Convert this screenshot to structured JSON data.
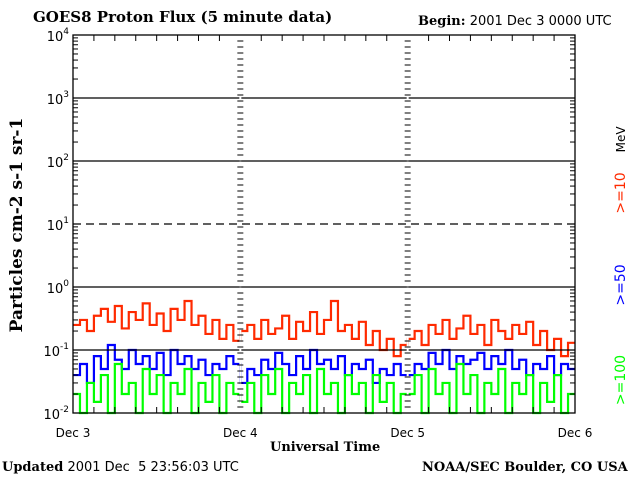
{
  "header": {
    "title": "GOES8 Proton Flux (5 minute data)",
    "begin_label": "Begin:",
    "begin_value": "2001 Dec 3 0000 UTC"
  },
  "footer": {
    "updated_label": "Updated",
    "updated_value": "2001 Dec  5 23:56:03 UTC",
    "credit": "NOAA/SEC Boulder, CO USA"
  },
  "chart_data": {
    "type": "line",
    "title": "GOES8 Proton Flux (5 minute data)",
    "xlabel": "Universal Time",
    "ylabel": "Particles cm-2 s-1 sr-1",
    "yscale": "log",
    "ylim": [
      0.01,
      10000
    ],
    "yticks": [
      {
        "base": "10",
        "exp": "4"
      },
      {
        "base": "10",
        "exp": "3"
      },
      {
        "base": "10",
        "exp": "2"
      },
      {
        "base": "10",
        "exp": "1"
      },
      {
        "base": "10",
        "exp": "0"
      },
      {
        "base": "10",
        "exp": "-1"
      },
      {
        "base": "10",
        "exp": "-2"
      }
    ],
    "xlim_days": [
      0,
      3
    ],
    "xticks": [
      "Dec 3",
      "Dec 4",
      "Dec 5",
      "Dec 6"
    ],
    "x_step_hours": 1,
    "series": [
      {
        "name": ">=10 MeV",
        "label": ">=10",
        "unit": "MeV",
        "color": "#ff2a00",
        "values": [
          0.25,
          0.3,
          0.2,
          0.35,
          0.45,
          0.28,
          0.5,
          0.22,
          0.4,
          0.3,
          0.55,
          0.25,
          0.38,
          0.2,
          0.45,
          0.3,
          0.6,
          0.25,
          0.35,
          0.18,
          0.3,
          0.15,
          0.25,
          0.14,
          0.2,
          0.25,
          0.15,
          0.3,
          0.18,
          0.22,
          0.35,
          0.15,
          0.28,
          0.2,
          0.4,
          0.18,
          0.3,
          0.6,
          0.2,
          0.25,
          0.15,
          0.28,
          0.12,
          0.2,
          0.1,
          0.15,
          0.08,
          0.12,
          0.15,
          0.2,
          0.12,
          0.25,
          0.18,
          0.3,
          0.15,
          0.22,
          0.35,
          0.18,
          0.25,
          0.12,
          0.3,
          0.2,
          0.15,
          0.25,
          0.18,
          0.28,
          0.12,
          0.2,
          0.1,
          0.15,
          0.08,
          0.13
        ]
      },
      {
        "name": ">=50 MeV",
        "label": ">=50",
        "color": "#0000ff",
        "values": [
          0.04,
          0.06,
          0.03,
          0.08,
          0.05,
          0.12,
          0.07,
          0.05,
          0.1,
          0.06,
          0.08,
          0.05,
          0.09,
          0.04,
          0.1,
          0.06,
          0.08,
          0.05,
          0.07,
          0.04,
          0.06,
          0.05,
          0.08,
          0.06,
          0.03,
          0.05,
          0.04,
          0.07,
          0.05,
          0.09,
          0.06,
          0.04,
          0.08,
          0.05,
          0.1,
          0.06,
          0.07,
          0.05,
          0.08,
          0.04,
          0.06,
          0.05,
          0.07,
          0.03,
          0.05,
          0.04,
          0.06,
          0.04,
          0.04,
          0.06,
          0.05,
          0.09,
          0.06,
          0.1,
          0.05,
          0.08,
          0.06,
          0.07,
          0.09,
          0.05,
          0.08,
          0.06,
          0.1,
          0.05,
          0.07,
          0.04,
          0.06,
          0.05,
          0.08,
          0.04,
          0.06,
          0.05
        ]
      },
      {
        "name": ">=100 MeV",
        "label": ">=100",
        "color": "#00ff00",
        "values": [
          0.02,
          0.01,
          0.03,
          0.015,
          0.04,
          0.01,
          0.06,
          0.02,
          0.03,
          0.01,
          0.05,
          0.02,
          0.04,
          0.01,
          0.03,
          0.02,
          0.05,
          0.01,
          0.03,
          0.015,
          0.04,
          0.01,
          0.03,
          0.02,
          0.015,
          0.03,
          0.01,
          0.04,
          0.02,
          0.05,
          0.01,
          0.03,
          0.02,
          0.04,
          0.01,
          0.05,
          0.02,
          0.03,
          0.01,
          0.04,
          0.02,
          0.03,
          0.01,
          0.04,
          0.015,
          0.03,
          0.01,
          0.02,
          0.02,
          0.04,
          0.01,
          0.05,
          0.02,
          0.03,
          0.01,
          0.06,
          0.02,
          0.04,
          0.01,
          0.03,
          0.02,
          0.05,
          0.01,
          0.03,
          0.02,
          0.04,
          0.01,
          0.03,
          0.015,
          0.04,
          0.01,
          0.02
        ]
      }
    ]
  }
}
